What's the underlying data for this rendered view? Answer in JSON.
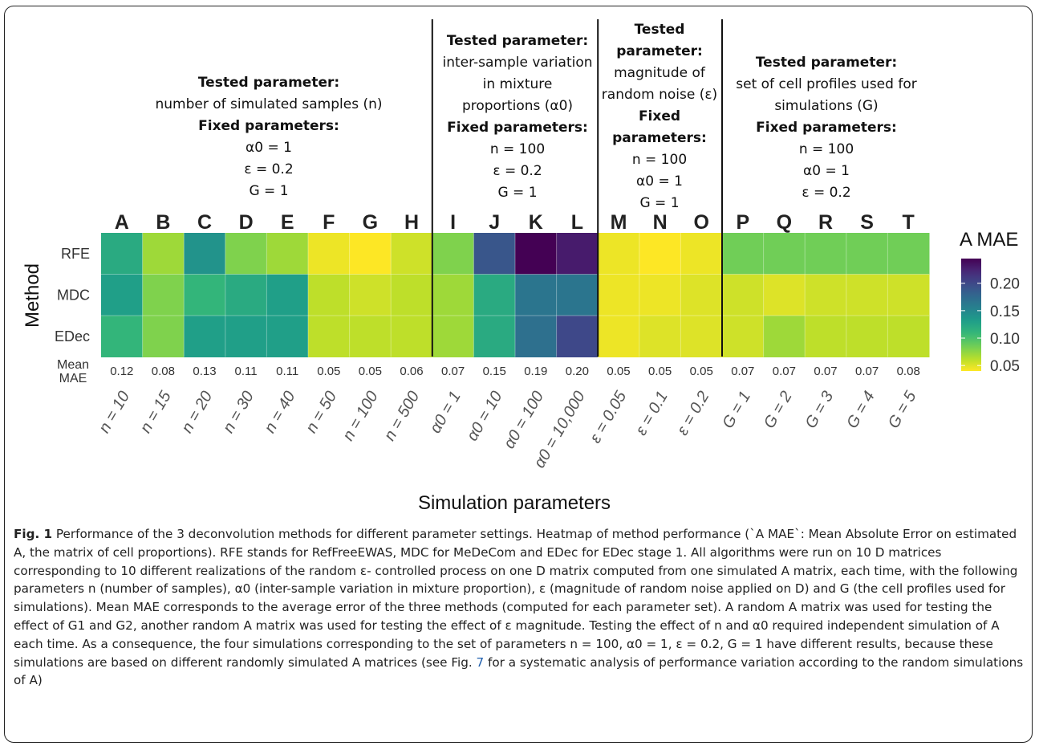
{
  "chart_data": {
    "type": "heatmap",
    "xlabel": "Simulation parameters",
    "ylabel": "Method",
    "legend_title": "A MAE",
    "legend_ticks": [
      "0.20",
      "0.15",
      "0.10",
      "0.05"
    ],
    "legend_tick_values": [
      0.2,
      0.15,
      0.1,
      0.05
    ],
    "color_range": [
      0.04,
      0.245
    ],
    "colormap": "viridis (reversed: high = dark purple, low = yellow)",
    "columns": [
      "A",
      "B",
      "C",
      "D",
      "E",
      "F",
      "G",
      "H",
      "I",
      "J",
      "K",
      "L",
      "M",
      "N",
      "O",
      "P",
      "Q",
      "R",
      "S",
      "T"
    ],
    "column_params": [
      "n = 10",
      "n = 15",
      "n = 20",
      "n = 30",
      "n = 40",
      "n = 50",
      "n = 100",
      "n = 500",
      "α0 = 1",
      "α0 = 10",
      "α0 = 100",
      "α0 = 10,000",
      "ε = 0.05",
      "ε = 0.1",
      "ε = 0.2",
      "G = 1",
      "G = 2",
      "G = 3",
      "G = 4",
      "G = 5"
    ],
    "rows": [
      "RFE",
      "MDC",
      "EDec"
    ],
    "values": [
      [
        0.12,
        0.07,
        0.14,
        0.08,
        0.07,
        0.045,
        0.04,
        0.055,
        0.08,
        0.19,
        0.245,
        0.23,
        0.045,
        0.04,
        0.045,
        0.085,
        0.085,
        0.085,
        0.085,
        0.085
      ],
      [
        0.13,
        0.08,
        0.11,
        0.12,
        0.13,
        0.06,
        0.055,
        0.06,
        0.07,
        0.12,
        0.165,
        0.165,
        0.045,
        0.045,
        0.05,
        0.055,
        0.05,
        0.055,
        0.055,
        0.055
      ],
      [
        0.11,
        0.08,
        0.13,
        0.13,
        0.13,
        0.06,
        0.06,
        0.06,
        0.07,
        0.12,
        0.17,
        0.2,
        0.045,
        0.05,
        0.05,
        0.055,
        0.07,
        0.06,
        0.06,
        0.06
      ]
    ],
    "mean_label": "Mean MAE",
    "mean_mae": [
      "0.12",
      "0.08",
      "0.13",
      "0.11",
      "0.11",
      "0.05",
      "0.05",
      "0.06",
      "0.07",
      "0.15",
      "0.19",
      "0.20",
      "0.05",
      "0.05",
      "0.05",
      "0.07",
      "0.07",
      "0.07",
      "0.07",
      "0.08"
    ],
    "group_boundaries_after": [
      "H",
      "L",
      "O"
    ]
  },
  "headers": [
    {
      "lines": [
        {
          "t": "Tested parameter:",
          "b": true
        },
        {
          "t": "number of simulated samples (n)",
          "b": false
        },
        {
          "t": "Fixed parameters:",
          "b": true
        },
        {
          "t": "α0 = 1",
          "b": false
        },
        {
          "t": "ε = 0.2",
          "b": false
        },
        {
          "t": "G = 1",
          "b": false
        }
      ]
    },
    {
      "lines": [
        {
          "t": "Tested parameter:",
          "b": true
        },
        {
          "t": "inter-sample variation",
          "b": false
        },
        {
          "t": "in mixture",
          "b": false
        },
        {
          "t": "proportions (α0)",
          "b": false
        },
        {
          "t": "Fixed parameters:",
          "b": true
        },
        {
          "t": "n  = 100",
          "b": false
        },
        {
          "t": "ε = 0.2",
          "b": false
        },
        {
          "t": "G = 1",
          "b": false
        }
      ]
    },
    {
      "lines": [
        {
          "t": "Tested",
          "b": true
        },
        {
          "t": "parameter:",
          "b": true
        },
        {
          "t": "magnitude of",
          "b": false
        },
        {
          "t": "random noise (ε)",
          "b": false
        },
        {
          "t": "Fixed",
          "b": true
        },
        {
          "t": "parameters:",
          "b": true
        },
        {
          "t": "n = 100",
          "b": false
        },
        {
          "t": "α0 = 1",
          "b": false
        },
        {
          "t": "G = 1",
          "b": false
        }
      ]
    },
    {
      "lines": [
        {
          "t": "Tested parameter:",
          "b": true
        },
        {
          "t": "set of cell profiles used for",
          "b": false
        },
        {
          "t": "simulations (G)",
          "b": false
        },
        {
          "t": "Fixed parameters:",
          "b": true
        },
        {
          "t": "n = 100",
          "b": false
        },
        {
          "t": "α0 = 1",
          "b": false
        },
        {
          "t": "ε = 0.2",
          "b": false
        }
      ]
    }
  ],
  "caption": {
    "fig_label": "Fig. 1",
    "part1": " Performance of the 3 deconvolution methods for different parameter settings. Heatmap of method performance (`A MAE`: Mean Absolute Error on estimated A, the matrix of cell proportions). RFE stands for RefFreeEWAS, MDC for MeDeCom and EDec for EDec stage 1. All algorithms were run on 10 D matrices corresponding to 10 different realizations of the random ε- controlled process on one D matrix computed from one simulated A matrix, each time, with the following parameters n (number of samples), α0 (inter-sample variation in mixture proportion), ε (magnitude of random noise applied on D) and G (the cell profiles used for simulations). Mean MAE corresponds to the average error of the three methods (computed for each parameter set). A random A matrix was used for testing the effect of G1 and G2, another random A matrix was used for testing the effect of ε magnitude. Testing the effect of n and α0 required independent simulation of A each time. As a consequence, the four simulations corresponding to the set of parameters n = 100, α0 = 1, ε = 0.2, G = 1 have different results, because these simulations are based on different randomly simulated A matrices (see Fig. ",
    "ref": "7",
    "part2": " for a systematic analysis of performance variation according to the random simulations of A)"
  }
}
